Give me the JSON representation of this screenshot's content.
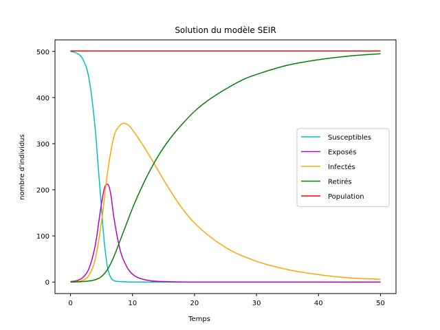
{
  "chart_data": {
    "type": "line",
    "title": "Solution du modèle SEIR",
    "xlabel": "Temps",
    "ylabel": "nombre d'individus",
    "xlim": [
      -2.5,
      52.5
    ],
    "ylim": [
      -25,
      525
    ],
    "xticks": [
      0,
      10,
      20,
      30,
      40,
      50
    ],
    "yticks": [
      0,
      100,
      200,
      300,
      400,
      500
    ],
    "grid": false,
    "legend_position": "center-right",
    "series": [
      {
        "name": "Susceptibles",
        "color": "#00bfbf",
        "x": [
          0,
          1,
          2,
          3,
          4,
          4.5,
          5,
          5.5,
          6,
          6.5,
          7,
          8,
          10,
          15,
          20,
          30,
          40,
          50
        ],
        "y": [
          500,
          496,
          483,
          440,
          330,
          245,
          160,
          80,
          30,
          10,
          3,
          1,
          0,
          0,
          0,
          0,
          0,
          0
        ]
      },
      {
        "name": "Exposés",
        "color": "#bf00bf",
        "x": [
          0,
          1,
          2,
          3,
          4,
          5,
          5.5,
          6,
          6.5,
          7,
          8,
          9,
          10,
          12,
          15,
          20,
          30,
          40,
          50
        ],
        "y": [
          1,
          3,
          10,
          30,
          80,
          170,
          205,
          212,
          190,
          140,
          70,
          35,
          17,
          5,
          1,
          0,
          0,
          0,
          0
        ]
      },
      {
        "name": "Infectés",
        "color": "#ffa500",
        "x": [
          0,
          1,
          2,
          3,
          4,
          5,
          6,
          7,
          8,
          8.7,
          9.5,
          10,
          12,
          14,
          16,
          18,
          20,
          25,
          30,
          35,
          40,
          45,
          50
        ],
        "y": [
          0,
          1,
          4,
          15,
          50,
          130,
          240,
          315,
          340,
          344,
          338,
          330,
          290,
          245,
          200,
          160,
          128,
          75,
          45,
          27,
          16,
          9,
          6
        ]
      },
      {
        "name": "Retirés",
        "color": "#008000",
        "x": [
          0,
          2,
          4,
          5,
          6,
          7,
          8,
          9,
          10,
          12,
          14,
          16,
          18,
          20,
          22,
          25,
          28,
          30,
          35,
          40,
          45,
          50
        ],
        "y": [
          0,
          1,
          5,
          12,
          28,
          55,
          90,
          125,
          160,
          220,
          270,
          310,
          342,
          370,
          392,
          418,
          440,
          450,
          470,
          482,
          490,
          495
        ]
      },
      {
        "name": "Population",
        "color": "#ff0000",
        "x": [
          0,
          50
        ],
        "y": [
          501,
          501
        ]
      }
    ]
  }
}
